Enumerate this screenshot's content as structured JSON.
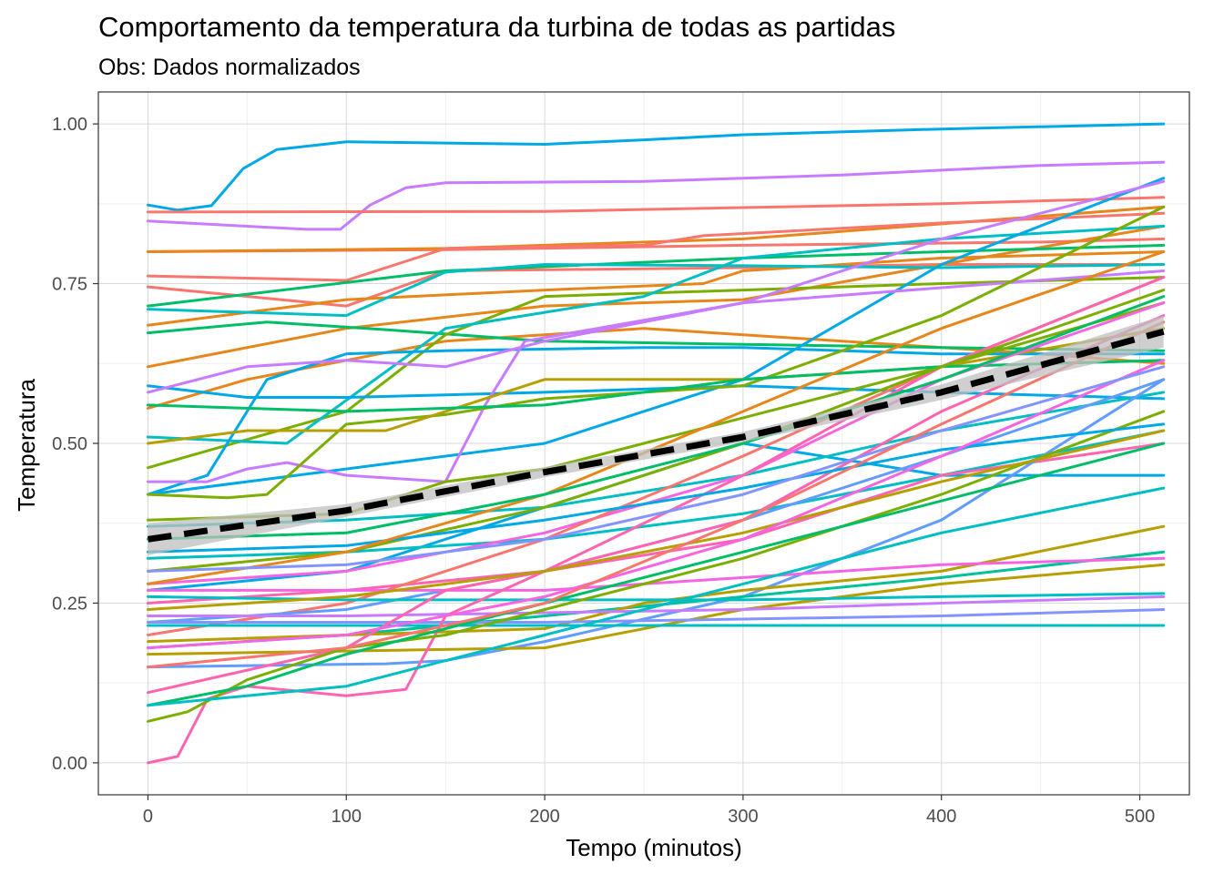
{
  "chart_data": {
    "type": "line",
    "title": "Comportamento da temperatura da turbina de todas as partidas",
    "subtitle": "Obs: Dados normalizados",
    "xlabel": "Tempo (minutos)",
    "ylabel": "Temperatura",
    "xlim": [
      -25,
      525
    ],
    "ylim": [
      -0.05,
      1.05
    ],
    "x_ticks": [
      0,
      100,
      200,
      300,
      400,
      500
    ],
    "x_tick_labels": [
      "0",
      "100",
      "200",
      "300",
      "400",
      "500"
    ],
    "y_ticks": [
      0.0,
      0.25,
      0.5,
      0.75,
      1.0
    ],
    "y_tick_labels": [
      "0.00",
      "0.25",
      "0.50",
      "0.75",
      "1.00"
    ],
    "grid": true,
    "legend": "none",
    "colors": {
      "panel_border": "#333333",
      "grid_major": "#d9d9d9",
      "grid_minor": "#efefef",
      "trend": "#000000",
      "confidence_band": "#bfbfbf"
    },
    "trend": {
      "style": "dashed",
      "x": [
        0,
        100,
        200,
        300,
        400,
        512
      ],
      "y": [
        0.35,
        0.395,
        0.455,
        0.51,
        0.58,
        0.675
      ],
      "band_lower": [
        0.325,
        0.385,
        0.447,
        0.502,
        0.568,
        0.65
      ],
      "band_upper": [
        0.375,
        0.405,
        0.463,
        0.518,
        0.592,
        0.7
      ]
    },
    "series": [
      {
        "color": "#00A9E6",
        "x": [
          0,
          15,
          32,
          48,
          65,
          100,
          200,
          250,
          300,
          400,
          512
        ],
        "y": [
          0.873,
          0.865,
          0.872,
          0.93,
          0.96,
          0.972,
          0.968,
          0.975,
          0.983,
          0.992,
          1.0
        ]
      },
      {
        "color": "#C77CFF",
        "x": [
          0,
          80,
          97,
          112,
          130,
          150,
          250,
          350,
          450,
          512
        ],
        "y": [
          0.848,
          0.835,
          0.835,
          0.873,
          0.9,
          0.908,
          0.91,
          0.92,
          0.935,
          0.94
        ]
      },
      {
        "color": "#F8766D",
        "x": [
          0,
          200,
          400,
          512
        ],
        "y": [
          0.862,
          0.863,
          0.875,
          0.885
        ]
      },
      {
        "color": "#F8766D",
        "x": [
          0,
          150,
          300,
          450,
          512
        ],
        "y": [
          0.8,
          0.803,
          0.81,
          0.815,
          0.82
        ]
      },
      {
        "color": "#E7861B",
        "x": [
          0,
          150,
          300,
          512
        ],
        "y": [
          0.8,
          0.805,
          0.82,
          0.87
        ]
      },
      {
        "color": "#F8766D",
        "x": [
          0,
          100,
          130,
          150,
          250,
          280,
          400,
          512
        ],
        "y": [
          0.762,
          0.755,
          0.785,
          0.805,
          0.81,
          0.825,
          0.845,
          0.86
        ]
      },
      {
        "color": "#F8766D",
        "x": [
          0,
          100,
          150,
          300,
          400,
          512
        ],
        "y": [
          0.745,
          0.715,
          0.77,
          0.775,
          0.78,
          0.78
        ]
      },
      {
        "color": "#E7861B",
        "x": [
          0,
          100,
          200,
          280,
          300,
          400,
          512
        ],
        "y": [
          0.685,
          0.725,
          0.74,
          0.75,
          0.77,
          0.79,
          0.8
        ]
      },
      {
        "color": "#E7861B",
        "x": [
          0,
          100,
          200,
          300,
          400,
          512
        ],
        "y": [
          0.62,
          0.68,
          0.715,
          0.725,
          0.78,
          0.84
        ]
      },
      {
        "color": "#E7861B",
        "x": [
          0,
          50,
          150,
          250,
          350,
          450,
          512
        ],
        "y": [
          0.555,
          0.6,
          0.66,
          0.68,
          0.66,
          0.64,
          0.625
        ]
      },
      {
        "color": "#00BE67",
        "x": [
          0,
          60,
          120,
          200,
          300,
          400,
          512
        ],
        "y": [
          0.673,
          0.69,
          0.678,
          0.66,
          0.655,
          0.65,
          0.645
        ]
      },
      {
        "color": "#00BE67",
        "x": [
          0,
          150,
          300,
          400,
          512
        ],
        "y": [
          0.715,
          0.77,
          0.79,
          0.8,
          0.81
        ]
      },
      {
        "color": "#7CAE00",
        "x": [
          0,
          100,
          150,
          200,
          300,
          400,
          512
        ],
        "y": [
          0.462,
          0.55,
          0.67,
          0.73,
          0.74,
          0.75,
          0.76
        ]
      },
      {
        "color": "#00BFC4",
        "x": [
          0,
          100,
          150,
          200,
          300,
          400,
          512
        ],
        "y": [
          0.71,
          0.7,
          0.768,
          0.78,
          0.778,
          0.775,
          0.78
        ]
      },
      {
        "color": "#00BFC4",
        "x": [
          0,
          70,
          150,
          250,
          300,
          400,
          512
        ],
        "y": [
          0.51,
          0.5,
          0.68,
          0.73,
          0.79,
          0.82,
          0.84
        ]
      },
      {
        "color": "#00A9E6",
        "x": [
          0,
          30,
          60,
          100,
          150,
          250,
          300,
          350,
          400,
          450,
          512
        ],
        "y": [
          0.42,
          0.45,
          0.6,
          0.64,
          0.645,
          0.65,
          0.65,
          0.645,
          0.64,
          0.64,
          0.64
        ]
      },
      {
        "color": "#00A9E6",
        "x": [
          0,
          50,
          100,
          200,
          300,
          400,
          512
        ],
        "y": [
          0.59,
          0.572,
          0.572,
          0.58,
          0.59,
          0.58,
          0.57
        ]
      },
      {
        "color": "#00A9E6",
        "x": [
          0,
          200,
          300,
          400,
          512
        ],
        "y": [
          0.42,
          0.5,
          0.6,
          0.78,
          0.915
        ]
      },
      {
        "color": "#00A9E6",
        "x": [
          0,
          100,
          200,
          300,
          400,
          512
        ],
        "y": [
          0.27,
          0.3,
          0.4,
          0.5,
          0.45,
          0.45
        ]
      },
      {
        "color": "#C77CFF",
        "x": [
          0,
          50,
          100,
          150,
          200,
          300,
          400,
          512
        ],
        "y": [
          0.58,
          0.62,
          0.63,
          0.62,
          0.66,
          0.72,
          0.82,
          0.91
        ]
      },
      {
        "color": "#C77CFF",
        "x": [
          0,
          30,
          50,
          70,
          100,
          150,
          170,
          190,
          300,
          512
        ],
        "y": [
          0.44,
          0.44,
          0.46,
          0.47,
          0.45,
          0.44,
          0.56,
          0.66,
          0.72,
          0.77
        ]
      },
      {
        "color": "#7CAE00",
        "x": [
          0,
          40,
          60,
          100,
          150,
          200,
          300,
          400,
          512
        ],
        "y": [
          0.42,
          0.415,
          0.42,
          0.53,
          0.545,
          0.57,
          0.59,
          0.7,
          0.87
        ]
      },
      {
        "color": "#7CAE00",
        "x": [
          0,
          100,
          150,
          200,
          300,
          400,
          512
        ],
        "y": [
          0.38,
          0.39,
          0.44,
          0.46,
          0.54,
          0.62,
          0.72
        ]
      },
      {
        "color": "#B79F00",
        "x": [
          0,
          50,
          120,
          160,
          200,
          300,
          400,
          512
        ],
        "y": [
          0.5,
          0.52,
          0.52,
          0.56,
          0.6,
          0.6,
          0.62,
          0.68
        ]
      },
      {
        "color": "#00BE67",
        "x": [
          0,
          100,
          200,
          300,
          400,
          512
        ],
        "y": [
          0.56,
          0.55,
          0.56,
          0.6,
          0.62,
          0.63
        ]
      },
      {
        "color": "#00BFC4",
        "x": [
          0,
          100,
          200,
          300,
          400,
          512
        ],
        "y": [
          0.37,
          0.38,
          0.4,
          0.45,
          0.52,
          0.58
        ]
      },
      {
        "color": "#00BFC4",
        "x": [
          0,
          100,
          200,
          300,
          400,
          512
        ],
        "y": [
          0.32,
          0.33,
          0.35,
          0.39,
          0.45,
          0.52
        ]
      },
      {
        "color": "#F564E3",
        "x": [
          0,
          100,
          200,
          300,
          400,
          512
        ],
        "y": [
          0.28,
          0.3,
          0.36,
          0.45,
          0.6,
          0.72
        ]
      },
      {
        "color": "#FF64B0",
        "x": [
          0,
          100,
          200,
          300,
          400,
          512
        ],
        "y": [
          0.25,
          0.27,
          0.3,
          0.35,
          0.45,
          0.5
        ]
      },
      {
        "color": "#F8766D",
        "x": [
          0,
          100,
          200,
          300,
          400,
          512
        ],
        "y": [
          0.2,
          0.25,
          0.35,
          0.48,
          0.62,
          0.76
        ]
      },
      {
        "color": "#619CFF",
        "x": [
          0,
          100,
          200,
          300,
          400,
          512
        ],
        "y": [
          0.22,
          0.24,
          0.3,
          0.38,
          0.48,
          0.6
        ]
      },
      {
        "color": "#619CFF",
        "x": [
          0,
          120,
          150,
          200,
          300,
          400,
          512
        ],
        "y": [
          0.15,
          0.155,
          0.16,
          0.19,
          0.26,
          0.38,
          0.6
        ]
      },
      {
        "color": "#00C19A",
        "x": [
          0,
          100,
          200,
          300,
          400,
          512
        ],
        "y": [
          0.18,
          0.2,
          0.23,
          0.26,
          0.29,
          0.33
        ]
      },
      {
        "color": "#B79F00",
        "x": [
          0,
          100,
          200,
          250,
          300,
          400,
          512
        ],
        "y": [
          0.19,
          0.2,
          0.21,
          0.25,
          0.27,
          0.3,
          0.37
        ]
      },
      {
        "color": "#B79F00",
        "x": [
          0,
          100,
          200,
          300,
          400,
          512
        ],
        "y": [
          0.17,
          0.175,
          0.18,
          0.24,
          0.28,
          0.31
        ]
      },
      {
        "color": "#00BFC4",
        "x": [
          0,
          100,
          200,
          300,
          400,
          512
        ],
        "y": [
          0.215,
          0.215,
          0.215,
          0.215,
          0.215,
          0.215
        ]
      },
      {
        "color": "#00BFC4",
        "x": [
          0,
          100,
          200,
          300,
          400,
          512
        ],
        "y": [
          0.26,
          0.255,
          0.255,
          0.255,
          0.26,
          0.265
        ]
      },
      {
        "color": "#8494FF",
        "x": [
          0,
          100,
          200,
          300,
          400,
          512
        ],
        "y": [
          0.22,
          0.22,
          0.22,
          0.225,
          0.23,
          0.24
        ]
      },
      {
        "color": "#C77CFF",
        "x": [
          0,
          100,
          200,
          300,
          400,
          512
        ],
        "y": [
          0.23,
          0.23,
          0.235,
          0.24,
          0.25,
          0.26
        ]
      },
      {
        "color": "#F564E3",
        "x": [
          0,
          100,
          200,
          300,
          400,
          512
        ],
        "y": [
          0.27,
          0.27,
          0.27,
          0.29,
          0.31,
          0.32
        ]
      },
      {
        "color": "#FF64B0",
        "x": [
          0,
          15,
          30,
          50,
          100,
          130,
          150,
          200,
          300,
          400,
          512
        ],
        "y": [
          0.0,
          0.01,
          0.1,
          0.12,
          0.105,
          0.115,
          0.23,
          0.3,
          0.45,
          0.62,
          0.76
        ]
      },
      {
        "color": "#FF64B0",
        "x": [
          0,
          100,
          150,
          200,
          300,
          400,
          512
        ],
        "y": [
          0.11,
          0.18,
          0.27,
          0.3,
          0.38,
          0.55,
          0.7
        ]
      },
      {
        "color": "#7CAE00",
        "x": [
          0,
          20,
          50,
          100,
          150,
          200,
          300,
          400,
          512
        ],
        "y": [
          0.065,
          0.08,
          0.13,
          0.18,
          0.2,
          0.24,
          0.32,
          0.42,
          0.55
        ]
      },
      {
        "color": "#00BE67",
        "x": [
          0,
          50,
          100,
          200,
          300,
          400,
          512
        ],
        "y": [
          0.09,
          0.12,
          0.17,
          0.25,
          0.33,
          0.41,
          0.5
        ]
      },
      {
        "color": "#00BFC4",
        "x": [
          0,
          100,
          200,
          300,
          400,
          512
        ],
        "y": [
          0.09,
          0.12,
          0.2,
          0.28,
          0.36,
          0.43
        ]
      },
      {
        "color": "#7CAE00",
        "x": [
          0,
          100,
          200,
          300,
          400,
          512
        ],
        "y": [
          0.3,
          0.33,
          0.4,
          0.5,
          0.62,
          0.74
        ]
      },
      {
        "color": "#00A9E6",
        "x": [
          0,
          100,
          200,
          300,
          400,
          512
        ],
        "y": [
          0.33,
          0.34,
          0.38,
          0.43,
          0.49,
          0.53
        ]
      },
      {
        "color": "#E7861B",
        "x": [
          0,
          100,
          200,
          300,
          400,
          512
        ],
        "y": [
          0.28,
          0.33,
          0.42,
          0.55,
          0.68,
          0.8
        ]
      },
      {
        "color": "#B79F00",
        "x": [
          0,
          100,
          200,
          300,
          400,
          512
        ],
        "y": [
          0.24,
          0.26,
          0.3,
          0.36,
          0.44,
          0.52
        ]
      },
      {
        "color": "#00BE67",
        "x": [
          0,
          100,
          200,
          300,
          400,
          512
        ],
        "y": [
          0.35,
          0.36,
          0.42,
          0.5,
          0.6,
          0.73
        ]
      },
      {
        "color": "#F564E3",
        "x": [
          0,
          100,
          200,
          300,
          400,
          512
        ],
        "y": [
          0.18,
          0.2,
          0.26,
          0.35,
          0.48,
          0.63
        ]
      },
      {
        "color": "#8494FF",
        "x": [
          0,
          100,
          200,
          300,
          400,
          512
        ],
        "y": [
          0.3,
          0.31,
          0.35,
          0.42,
          0.52,
          0.62
        ]
      },
      {
        "color": "#F8766D",
        "x": [
          0,
          100,
          200,
          300,
          400,
          512
        ],
        "y": [
          0.15,
          0.18,
          0.25,
          0.38,
          0.53,
          0.69
        ]
      }
    ]
  }
}
